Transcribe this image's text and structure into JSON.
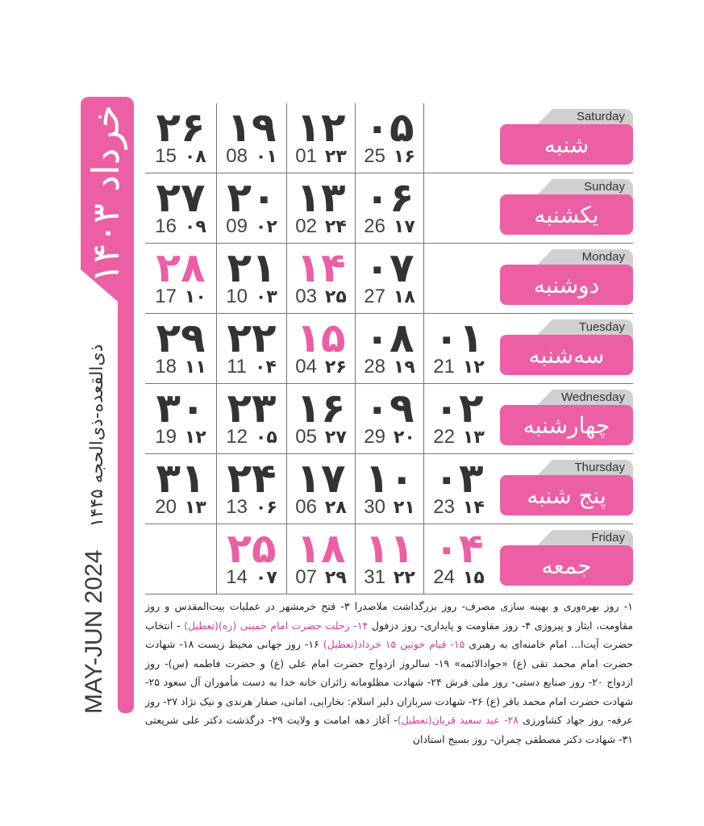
{
  "accent_color": "#ec5fa4",
  "sidebar": {
    "month": "خرداد ۱۴۰۳",
    "hijri": "ذی‌القعده-ذی‌الحجه ۱۴۴۵",
    "gregorian": "MAY-JUN 2024"
  },
  "weekdays": [
    {
      "en": "Saturday",
      "fa": "شنبه"
    },
    {
      "en": "Sunday",
      "fa": "یکشنبه"
    },
    {
      "en": "Monday",
      "fa": "دوشنبه"
    },
    {
      "en": "Tuesday",
      "fa": "سه‌شنبه"
    },
    {
      "en": "Wednesday",
      "fa": "چهارشنبه"
    },
    {
      "en": "Thursday",
      "fa": "پنج شنبه"
    },
    {
      "en": "Friday",
      "fa": "جمعه"
    }
  ],
  "weeks": [
    [
      null,
      null,
      null,
      {
        "d": "۰۱",
        "g": "21",
        "h": "۱۲"
      },
      {
        "d": "۰۲",
        "g": "22",
        "h": "۱۳"
      },
      {
        "d": "۰۳",
        "g": "23",
        "h": "۱۴"
      },
      {
        "d": "۰۴",
        "g": "24",
        "h": "۱۵",
        "holiday": true
      }
    ],
    [
      {
        "d": "۰۵",
        "g": "25",
        "h": "۱۶"
      },
      {
        "d": "۰۶",
        "g": "26",
        "h": "۱۷"
      },
      {
        "d": "۰۷",
        "g": "27",
        "h": "۱۸"
      },
      {
        "d": "۰۸",
        "g": "28",
        "h": "۱۹"
      },
      {
        "d": "۰۹",
        "g": "29",
        "h": "۲۰"
      },
      {
        "d": "۱۰",
        "g": "30",
        "h": "۲۱"
      },
      {
        "d": "۱۱",
        "g": "31",
        "h": "۲۲",
        "holiday": true
      }
    ],
    [
      {
        "d": "۱۲",
        "g": "01",
        "h": "۲۳"
      },
      {
        "d": "۱۳",
        "g": "02",
        "h": "۲۴"
      },
      {
        "d": "۱۴",
        "g": "03",
        "h": "۲۵",
        "holiday": true
      },
      {
        "d": "۱۵",
        "g": "04",
        "h": "۲۶",
        "holiday": true
      },
      {
        "d": "۱۶",
        "g": "05",
        "h": "۲۷"
      },
      {
        "d": "۱۷",
        "g": "06",
        "h": "۲۸"
      },
      {
        "d": "۱۸",
        "g": "07",
        "h": "۲۹",
        "holiday": true
      }
    ],
    [
      {
        "d": "۱۹",
        "g": "08",
        "h": "۰۱"
      },
      {
        "d": "۲۰",
        "g": "09",
        "h": "۰۲"
      },
      {
        "d": "۲۱",
        "g": "10",
        "h": "۰۳"
      },
      {
        "d": "۲۲",
        "g": "11",
        "h": "۰۴"
      },
      {
        "d": "۲۳",
        "g": "12",
        "h": "۰۵"
      },
      {
        "d": "۲۴",
        "g": "13",
        "h": "۰۶"
      },
      {
        "d": "۲۵",
        "g": "14",
        "h": "۰۷",
        "holiday": true
      }
    ],
    [
      {
        "d": "۲۶",
        "g": "15",
        "h": "۰۸"
      },
      {
        "d": "۲۷",
        "g": "16",
        "h": "۰۹"
      },
      {
        "d": "۲۸",
        "g": "17",
        "h": "۱۰",
        "holiday": true
      },
      {
        "d": "۲۹",
        "g": "18",
        "h": "۱۱"
      },
      {
        "d": "۳۰",
        "g": "19",
        "h": "۱۲"
      },
      {
        "d": "۳۱",
        "g": "20",
        "h": "۱۳"
      },
      null
    ]
  ],
  "notes": [
    {
      "t": "۱- روز بهره‌وری و بهینه سازی مصرف- روز بزرگداشت ملاصدرا ۳- فتح خرمشهر در عملیات بیت‌المقدس و روز مقاومت، ایثار و پیروزی ۴- روز مقاومت و پایداری- روز دزفول "
    },
    {
      "t": "۱۴- رحلت حضرت امام خمینی (ره)(تعطیل)",
      "hl": true
    },
    {
      "t": " - انتخاب حضرت آیت‌ا... امام خامنه‌ای به رهبری "
    },
    {
      "t": "۱۵- قیام خونین ۱۵ خرداد(تعطیل)",
      "hl": true
    },
    {
      "t": " ۱۶- روز جهانی محیط زیست ۱۸- شهادت حضرت امام محمد تقی (ع) «جوادالائمه» ۱۹- سالروز ازدواج حضرت امام علی (ع) و حضرت فاطمه (س)- روز ازدواج ۲۰- روز صنایع دستی- روز ملی فرش ۲۴- شهادت مظلومانه زائران خانه خدا به دست مأموران آل سعود ۲۵- شهادت حضرت امام محمد باقر (ع) ۲۶- شهادت سربازان دلیر اسلام: بخارایی، امانی، صفار هرندی و نیک نژاد ۲۷- روز عرفه- روز جهاد کشاورزی "
    },
    {
      "t": "۲۸- عید سعید قربان(تعطیل)",
      "hl": true
    },
    {
      "t": "- آغاز دهه امامت و ولایت ۲۹- درگذشت دکتر علی شریعتی ۳۱- شهادت دکتر مصطفی چمران- روز بسیج استادان"
    }
  ]
}
